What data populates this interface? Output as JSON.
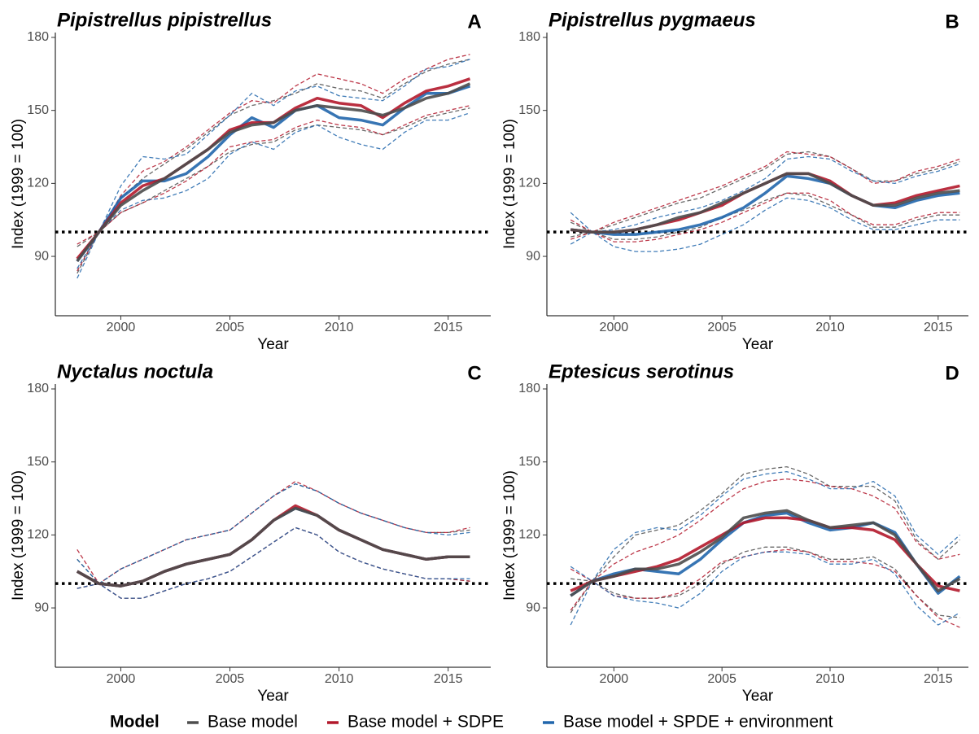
{
  "chart_data": [
    {
      "type": "line",
      "title": "Pipistrellus pipistrellus",
      "tag": "A",
      "x_label": "Year",
      "y_label": "Index (1999 = 100)",
      "x": [
        1998,
        1999,
        2000,
        2001,
        2002,
        2003,
        2004,
        2005,
        2006,
        2007,
        2008,
        2009,
        2010,
        2011,
        2012,
        2013,
        2014,
        2015,
        2016
      ],
      "xlim": [
        1997,
        2016.95
      ],
      "xticks": [
        2000,
        2005,
        2010,
        2015
      ],
      "ylim": [
        65.6,
        182
      ],
      "yticks": [
        90,
        120,
        150,
        180
      ],
      "hline": 100,
      "series": [
        {
          "values": [
            88,
            100,
            111,
            117,
            122,
            128,
            134,
            141,
            144,
            145,
            150,
            152,
            151,
            150,
            148,
            151,
            155,
            157,
            161
          ],
          "upper": [
            94,
            100,
            114,
            122,
            128,
            134,
            141,
            148,
            152,
            154,
            157,
            161,
            159,
            158,
            155,
            161,
            166,
            169,
            171
          ],
          "lower": [
            83,
            100,
            108,
            112,
            117,
            122,
            127,
            133,
            136,
            137,
            142,
            144,
            143,
            142,
            140,
            143,
            147,
            149,
            151
          ]
        },
        {
          "values": [
            89,
            100,
            112,
            119,
            122,
            128,
            134,
            142,
            145,
            145,
            151,
            155,
            153,
            152,
            147,
            153,
            158,
            160,
            163
          ],
          "upper": [
            95,
            100,
            115,
            125,
            129,
            135,
            142,
            149,
            154,
            153,
            160,
            165,
            163,
            161,
            157,
            163,
            167,
            171,
            173
          ],
          "lower": [
            84,
            100,
            108,
            112,
            116,
            121,
            127,
            135,
            137,
            138,
            143,
            146,
            144,
            143,
            140,
            144,
            148,
            150,
            152
          ]
        },
        {
          "values": [
            88,
            100,
            114,
            121,
            121,
            124,
            131,
            140,
            147,
            143,
            150,
            152,
            147,
            146,
            144,
            151,
            157,
            157,
            160
          ],
          "upper": [
            85,
            100,
            119,
            131,
            130,
            132,
            140,
            148,
            157,
            152,
            158,
            160,
            156,
            155,
            154,
            160,
            167,
            168,
            171
          ],
          "lower": [
            81,
            100,
            109,
            113,
            114,
            117,
            122,
            132,
            137,
            134,
            141,
            144,
            139,
            136,
            134,
            141,
            146,
            146,
            149
          ]
        }
      ]
    },
    {
      "type": "line",
      "title": "Pipistrellus pygmaeus",
      "tag": "B",
      "x_label": "Year",
      "y_label": "Index (1999 = 100)",
      "x": [
        1998,
        1999,
        2000,
        2001,
        2002,
        2003,
        2004,
        2005,
        2006,
        2007,
        2008,
        2009,
        2010,
        2011,
        2012,
        2013,
        2014,
        2015,
        2016
      ],
      "xlim": [
        1996.9,
        2016.4
      ],
      "xticks": [
        2000,
        2005,
        2010,
        2015
      ],
      "ylim": [
        65.6,
        182
      ],
      "yticks": [
        90,
        120,
        150,
        180
      ],
      "hline": 100,
      "series": [
        {
          "values": [
            101,
            100,
            100,
            101,
            103,
            106,
            108,
            112,
            116,
            120,
            124,
            124,
            120,
            115,
            111,
            111,
            114,
            116,
            117
          ],
          "upper": [
            104,
            100,
            103,
            106,
            109,
            112,
            114,
            118,
            122,
            126,
            132,
            133,
            131,
            126,
            121,
            121,
            124,
            126,
            129
          ],
          "lower": [
            98,
            100,
            97,
            97,
            98,
            100,
            102,
            106,
            109,
            113,
            116,
            115,
            111,
            107,
            102,
            102,
            105,
            107,
            107
          ]
        },
        {
          "values": [
            101,
            100,
            100,
            101,
            103,
            105,
            108,
            111,
            116,
            120,
            124,
            124,
            121,
            115,
            111,
            112,
            115,
            117,
            119
          ],
          "upper": [
            105,
            100,
            104,
            107,
            110,
            113,
            116,
            119,
            123,
            127,
            133,
            132,
            131,
            126,
            120,
            121,
            125,
            127,
            130
          ],
          "lower": [
            97,
            100,
            96,
            96,
            97,
            99,
            101,
            104,
            108,
            112,
            116,
            116,
            113,
            107,
            103,
            103,
            106,
            108,
            108
          ]
        },
        {
          "values": [
            101,
            100,
            99,
            99,
            100,
            101,
            103,
            106,
            110,
            116,
            123,
            122,
            120,
            115,
            111,
            110,
            113,
            115,
            116
          ],
          "upper": [
            108,
            100,
            101,
            103,
            106,
            108,
            110,
            113,
            117,
            122,
            130,
            131,
            130,
            125,
            121,
            120,
            123,
            125,
            128
          ],
          "lower": [
            95,
            100,
            94,
            92,
            92,
            93,
            95,
            99,
            103,
            109,
            114,
            113,
            110,
            105,
            101,
            101,
            103,
            105,
            105
          ]
        }
      ]
    },
    {
      "type": "line",
      "title": "Nyctalus noctula",
      "tag": "C",
      "x_label": "Year",
      "y_label": "Index (1999 = 100)",
      "x": [
        1998,
        1999,
        2000,
        2001,
        2002,
        2003,
        2004,
        2005,
        2006,
        2007,
        2008,
        2009,
        2010,
        2011,
        2012,
        2013,
        2014,
        2015,
        2016
      ],
      "xlim": [
        1997,
        2016.95
      ],
      "xticks": [
        2000,
        2005,
        2010,
        2015
      ],
      "ylim": [
        65.6,
        182
      ],
      "yticks": [
        90,
        120,
        150,
        180
      ],
      "hline": 100,
      "series": [
        {
          "values": [
            105,
            100,
            99,
            101,
            105,
            108,
            110,
            112,
            118,
            126,
            131,
            128,
            122,
            118,
            114,
            112,
            110,
            111,
            111
          ],
          "upper": [
            110,
            100,
            106,
            110,
            114,
            118,
            120,
            122,
            129,
            136,
            141,
            138,
            133,
            129,
            126,
            123,
            121,
            121,
            122
          ],
          "lower": [
            98,
            100,
            94,
            94,
            97,
            100,
            102,
            105,
            111,
            117,
            123,
            120,
            113,
            109,
            106,
            104,
            102,
            102,
            101
          ]
        },
        {
          "values": [
            105,
            100,
            99,
            101,
            105,
            108,
            110,
            112,
            118,
            126,
            132,
            128,
            122,
            118,
            114,
            112,
            110,
            111,
            111
          ],
          "upper": [
            114,
            100,
            106,
            110,
            114,
            118,
            120,
            122,
            129,
            136,
            142,
            138,
            133,
            129,
            126,
            123,
            121,
            121,
            123
          ],
          "lower": [
            98,
            100,
            94,
            94,
            97,
            100,
            102,
            105,
            111,
            117,
            123,
            120,
            113,
            109,
            106,
            104,
            102,
            102,
            101
          ]
        },
        {
          "values": [
            105,
            100,
            99,
            101,
            105,
            108,
            110,
            112,
            118,
            126,
            131,
            128,
            122,
            118,
            114,
            112,
            110,
            111,
            111
          ],
          "upper": [
            110,
            100,
            106,
            110,
            114,
            118,
            120,
            122,
            129,
            136,
            141,
            138,
            133,
            129,
            126,
            123,
            121,
            120,
            121
          ],
          "lower": [
            98,
            100,
            94,
            94,
            97,
            100,
            102,
            105,
            111,
            117,
            123,
            120,
            113,
            109,
            106,
            104,
            102,
            102,
            102
          ]
        }
      ]
    },
    {
      "type": "line",
      "title": "Eptesicus serotinus",
      "tag": "D",
      "x_label": "Year",
      "y_label": "Index (1999 = 100)",
      "x": [
        1998,
        1999,
        2000,
        2001,
        2002,
        2003,
        2004,
        2005,
        2006,
        2007,
        2008,
        2009,
        2010,
        2011,
        2012,
        2013,
        2014,
        2015,
        2016
      ],
      "xlim": [
        1996.9,
        2016.4
      ],
      "xticks": [
        2000,
        2005,
        2010,
        2015
      ],
      "ylim": [
        65.6,
        182
      ],
      "yticks": [
        90,
        120,
        150,
        180
      ],
      "hline": 100,
      "series": [
        {
          "values": [
            95,
            101,
            103,
            106,
            106,
            108,
            113,
            119,
            127,
            129,
            130,
            126,
            123,
            124,
            125,
            120,
            108,
            97,
            102
          ],
          "upper": [
            102,
            101,
            111,
            120,
            122,
            124,
            130,
            137,
            145,
            147,
            148,
            145,
            140,
            140,
            140,
            134,
            118,
            110,
            118
          ],
          "lower": [
            88,
            101,
            96,
            94,
            94,
            95,
            100,
            108,
            113,
            115,
            115,
            113,
            110,
            110,
            111,
            106,
            95,
            87,
            86
          ]
        },
        {
          "values": [
            97,
            101,
            103,
            105,
            107,
            110,
            115,
            120,
            125,
            127,
            127,
            126,
            123,
            123,
            122,
            118,
            108,
            99,
            97
          ],
          "upper": [
            106,
            101,
            108,
            113,
            116,
            120,
            126,
            133,
            139,
            142,
            143,
            142,
            140,
            139,
            136,
            131,
            117,
            110,
            112
          ],
          "lower": [
            89,
            101,
            95,
            94,
            94,
            96,
            102,
            109,
            111,
            113,
            114,
            113,
            109,
            109,
            108,
            105,
            95,
            86,
            82
          ]
        },
        {
          "values": [
            95,
            101,
            104,
            106,
            105,
            104,
            110,
            118,
            125,
            128,
            129,
            125,
            122,
            123,
            125,
            121,
            108,
            96,
            103
          ],
          "upper": [
            107,
            101,
            114,
            121,
            123,
            122,
            128,
            136,
            143,
            145,
            146,
            143,
            139,
            139,
            142,
            136,
            120,
            112,
            120
          ],
          "lower": [
            83,
            101,
            95,
            93,
            92,
            90,
            96,
            105,
            111,
            113,
            113,
            112,
            108,
            108,
            110,
            104,
            91,
            83,
            88
          ]
        }
      ]
    }
  ],
  "legend": {
    "title": "Model",
    "entries": [
      {
        "name": "Base model",
        "color": "#4d4d4d"
      },
      {
        "name": "Base model + SDPE",
        "color": "#b2182b"
      },
      {
        "name": "Base model + SPDE + environment",
        "color": "#2166ac"
      }
    ]
  }
}
